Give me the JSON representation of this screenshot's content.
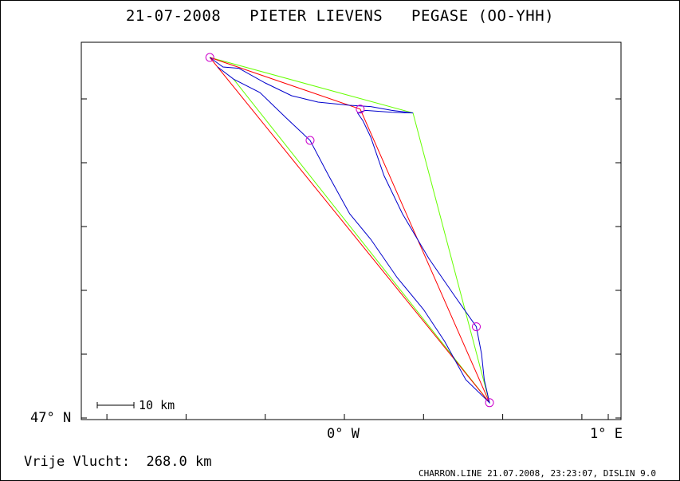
{
  "title": "21-07-2008   PIETER LIEVENS   PEGASE (OO-YHH)",
  "footer": {
    "distance_label": "Vrije Vlucht:",
    "distance_value": "268.0 km",
    "program_info": "CHARRON.LINE 21.07.2008, 23:23:07, DISLIN 9.0"
  },
  "axes": {
    "lat_label": "47° N",
    "lon_label_1": "0° W",
    "lon_label_2": "1° E"
  },
  "scale_bar": {
    "label": "10 km"
  },
  "colors": {
    "track": "#0000cc",
    "optimized_route": "#ff0000",
    "triangle": "#66ff00",
    "turnpoint": "#cc00cc",
    "frame": "#000000"
  },
  "map_data": {
    "turnpoints": [
      {
        "lon": -0.51,
        "lat": 47.565
      },
      {
        "lon": -0.13,
        "lat": 47.435
      },
      {
        "lon": 0.06,
        "lat": 47.484
      },
      {
        "lon": 0.5,
        "lat": 47.143
      },
      {
        "lon": 0.55,
        "lat": 47.024
      }
    ],
    "optimized_route": [
      {
        "lon": -0.51,
        "lat": 47.565
      },
      {
        "lon": 0.06,
        "lat": 47.484
      },
      {
        "lon": 0.55,
        "lat": 47.024
      },
      {
        "lon": -0.51,
        "lat": 47.565
      }
    ],
    "triangle": [
      {
        "lon": -0.51,
        "lat": 47.565
      },
      {
        "lon": 0.26,
        "lat": 47.478
      },
      {
        "lon": 0.55,
        "lat": 47.024
      },
      {
        "lon": -0.42,
        "lat": 47.531
      }
    ],
    "track": [
      {
        "lon": -0.51,
        "lat": 47.565
      },
      {
        "lon": -0.46,
        "lat": 47.55
      },
      {
        "lon": -0.4,
        "lat": 47.548
      },
      {
        "lon": -0.3,
        "lat": 47.525
      },
      {
        "lon": -0.2,
        "lat": 47.505
      },
      {
        "lon": -0.1,
        "lat": 47.495
      },
      {
        "lon": 0.02,
        "lat": 47.49
      },
      {
        "lon": 0.1,
        "lat": 47.488
      },
      {
        "lon": 0.18,
        "lat": 47.482
      },
      {
        "lon": 0.26,
        "lat": 47.478
      },
      {
        "lon": 0.18,
        "lat": 47.479
      },
      {
        "lon": 0.08,
        "lat": 47.482
      },
      {
        "lon": 0.05,
        "lat": 47.478
      },
      {
        "lon": 0.07,
        "lat": 47.466
      },
      {
        "lon": 0.1,
        "lat": 47.44
      },
      {
        "lon": 0.15,
        "lat": 47.38
      },
      {
        "lon": 0.22,
        "lat": 47.32
      },
      {
        "lon": 0.32,
        "lat": 47.25
      },
      {
        "lon": 0.42,
        "lat": 47.19
      },
      {
        "lon": 0.5,
        "lat": 47.143
      },
      {
        "lon": 0.52,
        "lat": 47.1
      },
      {
        "lon": 0.53,
        "lat": 47.06
      },
      {
        "lon": 0.55,
        "lat": 47.024
      },
      {
        "lon": 0.46,
        "lat": 47.06
      },
      {
        "lon": 0.38,
        "lat": 47.12
      },
      {
        "lon": 0.3,
        "lat": 47.17
      },
      {
        "lon": 0.2,
        "lat": 47.22
      },
      {
        "lon": 0.1,
        "lat": 47.28
      },
      {
        "lon": 0.02,
        "lat": 47.32
      },
      {
        "lon": -0.06,
        "lat": 47.38
      },
      {
        "lon": -0.13,
        "lat": 47.435
      },
      {
        "lon": -0.22,
        "lat": 47.47
      },
      {
        "lon": -0.32,
        "lat": 47.51
      },
      {
        "lon": -0.42,
        "lat": 47.531
      },
      {
        "lon": -0.48,
        "lat": 47.55
      }
    ]
  }
}
